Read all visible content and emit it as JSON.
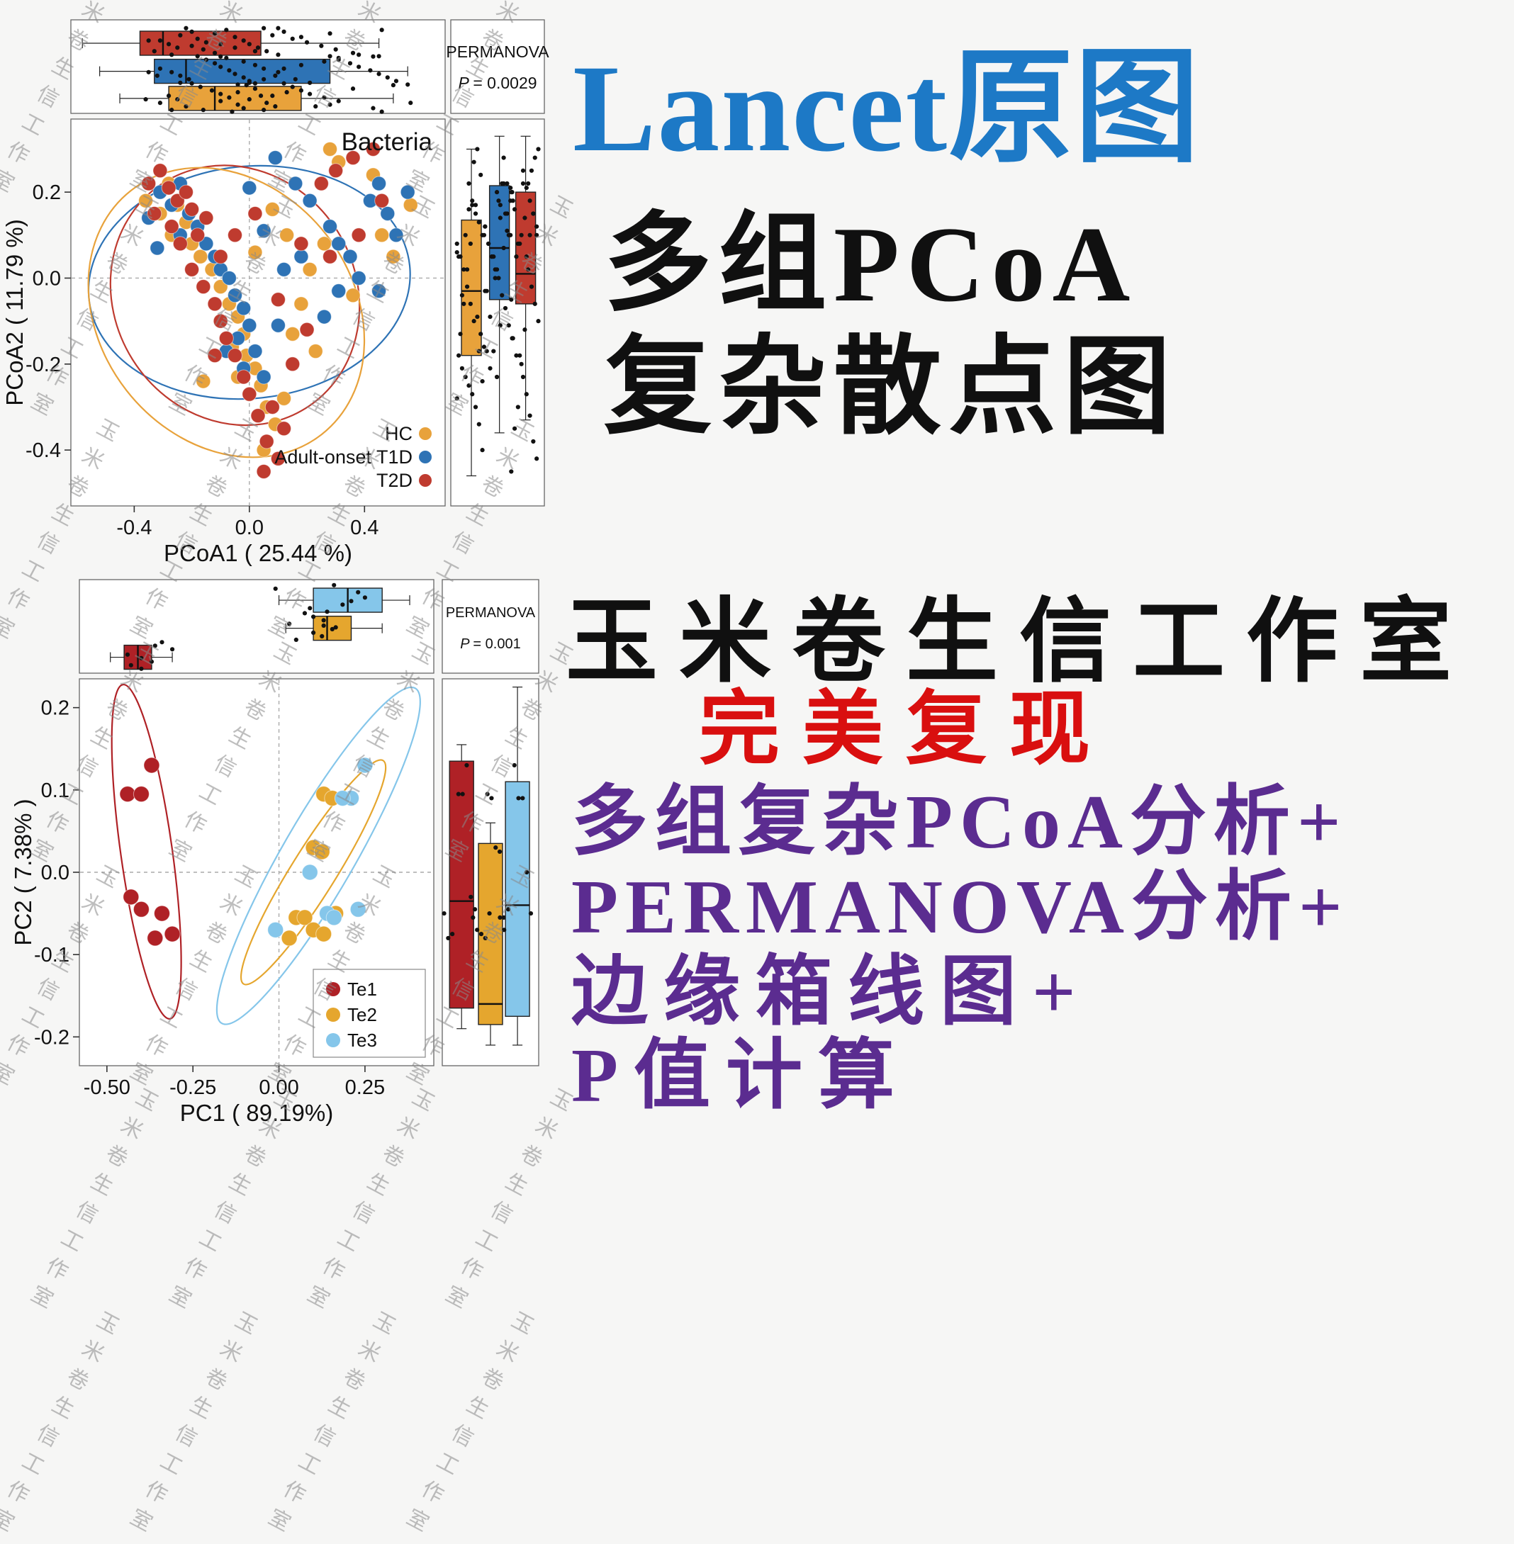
{
  "promo": {
    "lines": [
      {
        "text": "Lancet原图",
        "color": "#1d79c6"
      },
      {
        "text": "多组PCoA",
        "color": "#101010"
      },
      {
        "text": "复杂散点图",
        "color": "#101010"
      },
      {
        "text": "玉米卷生信工作室",
        "color": "#101010"
      },
      {
        "text": "完美复现",
        "color": "#d90f0f"
      },
      {
        "text": "多组复杂PCoA分析+",
        "color": "#5b2c90"
      },
      {
        "text": "PERMANOVA分析+",
        "color": "#5b2c90"
      },
      {
        "text": "边缘箱线图+",
        "color": "#5b2c90"
      },
      {
        "text": "P值计算",
        "color": "#5b2c90"
      }
    ]
  },
  "watermark": {
    "text": "玉米卷生信工作室",
    "color": "#8a8a8a"
  },
  "chart_data": [
    {
      "type": "scatter",
      "title": "Bacteria",
      "xlabel": "PCoA1 ( 25.44 %)",
      "ylabel": "PCoA2 ( 11.79 %)",
      "xlim": [
        -0.62,
        0.68
      ],
      "ylim": [
        -0.53,
        0.37
      ],
      "xticks": [
        -0.4,
        0.0,
        0.4
      ],
      "xtick_labels": [
        "-0.4",
        "0.0",
        "0.4"
      ],
      "yticks": [
        0.2,
        0.0,
        -0.2,
        -0.4
      ],
      "ytick_labels": [
        "0.2",
        "0.0",
        "-0.2",
        "-0.4"
      ],
      "permanova_label": "PERMANOVA",
      "p_label": "P = 0.0029",
      "point_r": 10,
      "perm_fs": 23,
      "series": [
        {
          "name": "HC",
          "color": "#E8A23B",
          "points": [
            [
              -0.28,
              0.22
            ],
            [
              -0.25,
              0.17
            ],
            [
              -0.31,
              0.15
            ],
            [
              -0.22,
              0.13
            ],
            [
              -0.27,
              0.1
            ],
            [
              -0.2,
              0.08
            ],
            [
              -0.17,
              0.05
            ],
            [
              -0.13,
              0.02
            ],
            [
              -0.1,
              -0.02
            ],
            [
              -0.07,
              -0.06
            ],
            [
              -0.1,
              -0.1
            ],
            [
              -0.04,
              -0.09
            ],
            [
              -0.02,
              -0.13
            ],
            [
              -0.06,
              -0.16
            ],
            [
              -0.01,
              -0.18
            ],
            [
              0.02,
              -0.21
            ],
            [
              -0.04,
              -0.23
            ],
            [
              0.04,
              -0.25
            ],
            [
              0.0,
              -0.27
            ],
            [
              0.06,
              -0.3
            ],
            [
              0.09,
              -0.34
            ],
            [
              0.05,
              -0.4
            ],
            [
              0.12,
              -0.28
            ],
            [
              0.15,
              -0.13
            ],
            [
              0.18,
              -0.06
            ],
            [
              0.21,
              0.02
            ],
            [
              0.26,
              0.08
            ],
            [
              0.31,
              0.27
            ],
            [
              0.28,
              0.3
            ],
            [
              0.43,
              0.24
            ],
            [
              0.46,
              0.1
            ],
            [
              0.5,
              0.05
            ],
            [
              0.36,
              -0.04
            ],
            [
              0.13,
              0.1
            ],
            [
              0.08,
              0.16
            ],
            [
              -0.36,
              0.18
            ],
            [
              0.56,
              0.17
            ],
            [
              0.23,
              -0.17
            ],
            [
              -0.16,
              -0.24
            ],
            [
              0.02,
              0.06
            ]
          ]
        },
        {
          "name": "Adult-onset T1D",
          "color": "#2E73B5",
          "points": [
            [
              -0.31,
              0.2
            ],
            [
              -0.27,
              0.17
            ],
            [
              -0.24,
              0.22
            ],
            [
              -0.21,
              0.15
            ],
            [
              -0.24,
              0.1
            ],
            [
              -0.18,
              0.12
            ],
            [
              -0.15,
              0.08
            ],
            [
              -0.12,
              0.05
            ],
            [
              -0.1,
              0.02
            ],
            [
              -0.07,
              0.0
            ],
            [
              -0.05,
              -0.04
            ],
            [
              -0.02,
              -0.07
            ],
            [
              0.0,
              -0.11
            ],
            [
              -0.04,
              -0.14
            ],
            [
              -0.08,
              -0.17
            ],
            [
              -0.02,
              -0.21
            ],
            [
              0.02,
              -0.17
            ],
            [
              0.05,
              -0.23
            ],
            [
              0.1,
              -0.11
            ],
            [
              0.09,
              0.28
            ],
            [
              0.16,
              0.22
            ],
            [
              0.21,
              0.18
            ],
            [
              0.28,
              0.12
            ],
            [
              0.31,
              0.08
            ],
            [
              0.35,
              0.05
            ],
            [
              0.38,
              0.0
            ],
            [
              0.42,
              0.18
            ],
            [
              0.45,
              0.22
            ],
            [
              0.48,
              0.15
            ],
            [
              0.51,
              0.1
            ],
            [
              0.55,
              0.2
            ],
            [
              0.31,
              -0.03
            ],
            [
              0.26,
              -0.09
            ],
            [
              0.18,
              0.05
            ],
            [
              0.12,
              0.02
            ],
            [
              -0.35,
              0.14
            ],
            [
              -0.32,
              0.07
            ],
            [
              0.05,
              0.11
            ],
            [
              0.0,
              0.21
            ],
            [
              0.45,
              -0.03
            ]
          ]
        },
        {
          "name": "T2D",
          "color": "#BF3B2F",
          "points": [
            [
              -0.31,
              0.25
            ],
            [
              -0.28,
              0.21
            ],
            [
              -0.25,
              0.18
            ],
            [
              -0.33,
              0.15
            ],
            [
              -0.27,
              0.12
            ],
            [
              -0.22,
              0.2
            ],
            [
              -0.2,
              0.16
            ],
            [
              -0.24,
              0.08
            ],
            [
              -0.18,
              0.1
            ],
            [
              -0.15,
              0.14
            ],
            [
              -0.2,
              0.02
            ],
            [
              -0.16,
              -0.02
            ],
            [
              -0.12,
              -0.06
            ],
            [
              -0.1,
              -0.1
            ],
            [
              -0.08,
              -0.14
            ],
            [
              -0.12,
              -0.18
            ],
            [
              -0.05,
              -0.18
            ],
            [
              -0.02,
              -0.23
            ],
            [
              0.0,
              -0.27
            ],
            [
              0.03,
              -0.32
            ],
            [
              0.06,
              -0.38
            ],
            [
              0.1,
              -0.42
            ],
            [
              0.05,
              -0.45
            ],
            [
              0.12,
              -0.35
            ],
            [
              0.08,
              -0.3
            ],
            [
              0.15,
              -0.2
            ],
            [
              0.2,
              -0.12
            ],
            [
              0.25,
              0.22
            ],
            [
              0.3,
              0.25
            ],
            [
              0.36,
              0.28
            ],
            [
              0.43,
              0.3
            ],
            [
              0.46,
              0.18
            ],
            [
              0.28,
              0.05
            ],
            [
              0.18,
              0.08
            ],
            [
              -0.35,
              0.22
            ],
            [
              -0.1,
              0.05
            ],
            [
              -0.05,
              0.1
            ],
            [
              0.02,
              0.15
            ],
            [
              0.38,
              0.1
            ],
            [
              0.1,
              -0.05
            ]
          ]
        }
      ],
      "ellipses": [
        {
          "color": "#2E73B5",
          "cx": 0.0,
          "cy": -0.01,
          "rx": 0.56,
          "ry": 0.27,
          "angle": -6
        },
        {
          "color": "#BF3B2F",
          "cx": -0.05,
          "cy": -0.04,
          "rx": 0.42,
          "ry": 0.31,
          "angle": -32
        },
        {
          "color": "#E8A23B",
          "cx": -0.08,
          "cy": -0.08,
          "rx": 0.44,
          "ry": 0.36,
          "angle": -38
        }
      ],
      "top_box": [
        {
          "series": 2,
          "color": "#BF3B2F",
          "min": -0.58,
          "q1": -0.38,
          "med": -0.3,
          "q3": 0.04,
          "max": 0.45
        },
        {
          "series": 1,
          "color": "#2E73B5",
          "min": -0.52,
          "q1": -0.33,
          "med": -0.22,
          "q3": 0.28,
          "max": 0.55
        },
        {
          "series": 0,
          "color": "#E8A23B",
          "min": -0.45,
          "q1": -0.28,
          "med": -0.12,
          "q3": 0.18,
          "max": 0.5
        }
      ],
      "right_box": [
        {
          "series": 0,
          "color": "#E8A23B",
          "min": -0.46,
          "q1": -0.18,
          "med": -0.03,
          "q3": 0.135,
          "max": 0.3
        },
        {
          "series": 1,
          "color": "#2E73B5",
          "min": -0.36,
          "q1": -0.05,
          "med": 0.07,
          "q3": 0.215,
          "max": 0.33
        },
        {
          "series": 2,
          "color": "#BF3B2F",
          "min": -0.33,
          "q1": -0.06,
          "med": 0.01,
          "q3": 0.2,
          "max": 0.33
        }
      ],
      "legend": [
        "HC",
        "Adult-onset T1D",
        "T2D"
      ]
    },
    {
      "type": "scatter",
      "title": "",
      "xlabel": "PC1 ( 89.19%)",
      "ylabel": "PC2 ( 7.38% )",
      "xlim": [
        -0.58,
        0.45
      ],
      "ylim": [
        -0.235,
        0.235
      ],
      "xticks": [
        -0.5,
        -0.25,
        0.0,
        0.25
      ],
      "xtick_labels": [
        "-0.50",
        "-0.25",
        "0.00",
        "0.25"
      ],
      "yticks": [
        0.2,
        0.1,
        0.0,
        -0.1,
        -0.2
      ],
      "ytick_labels": [
        "0.2",
        "0.1",
        "0.0",
        "-0.1",
        "-0.2"
      ],
      "permanova_label": "PERMANOVA",
      "p_label": "P = 0.001",
      "point_r": 11,
      "perm_fs": 20,
      "series": [
        {
          "name": "Te1",
          "color": "#AF2126",
          "points": [
            [
              -0.44,
              0.095
            ],
            [
              -0.4,
              0.095
            ],
            [
              -0.37,
              0.13
            ],
            [
              -0.43,
              -0.03
            ],
            [
              -0.4,
              -0.045
            ],
            [
              -0.34,
              -0.05
            ],
            [
              -0.36,
              -0.08
            ],
            [
              -0.31,
              -0.075
            ]
          ]
        },
        {
          "name": "Te2",
          "color": "#E5A62E",
          "points": [
            [
              0.13,
              0.095
            ],
            [
              0.155,
              0.09
            ],
            [
              0.1,
              0.03
            ],
            [
              0.125,
              0.025
            ],
            [
              0.05,
              -0.055
            ],
            [
              0.075,
              -0.055
            ],
            [
              0.1,
              -0.07
            ],
            [
              0.13,
              -0.075
            ],
            [
              0.03,
              -0.08
            ],
            [
              0.165,
              -0.05
            ]
          ]
        },
        {
          "name": "Te3",
          "color": "#85C6EA",
          "points": [
            [
              0.25,
              0.13
            ],
            [
              0.21,
              0.09
            ],
            [
              0.185,
              0.09
            ],
            [
              0.09,
              0.0
            ],
            [
              0.14,
              -0.05
            ],
            [
              0.16,
              -0.055
            ],
            [
              -0.01,
              -0.07
            ],
            [
              0.23,
              -0.045
            ]
          ]
        }
      ],
      "ellipses": [
        {
          "color": "#AF2126",
          "cx": -0.385,
          "cy": 0.025,
          "rx": 0.075,
          "ry": 0.205,
          "angle": -8
        },
        {
          "color": "#E5A62E",
          "cx": 0.1,
          "cy": 0.0,
          "rx": 0.065,
          "ry": 0.16,
          "angle": 32
        },
        {
          "color": "#85C6EA",
          "cx": 0.115,
          "cy": 0.02,
          "rx": 0.105,
          "ry": 0.235,
          "angle": 30
        }
      ],
      "top_box": [
        {
          "series": 2,
          "color": "#85C6EA",
          "min": 0.0,
          "q1": 0.1,
          "med": 0.2,
          "q3": 0.3,
          "max": 0.38
        },
        {
          "series": 1,
          "color": "#E5A62E",
          "min": 0.02,
          "q1": 0.1,
          "med": 0.14,
          "q3": 0.21,
          "max": 0.3
        },
        {
          "series": 0,
          "color": "#AF2126",
          "min": -0.49,
          "q1": -0.45,
          "med": -0.41,
          "q3": -0.37,
          "max": -0.31
        }
      ],
      "right_box": [
        {
          "series": 0,
          "color": "#AF2126",
          "min": -0.19,
          "q1": -0.165,
          "med": -0.035,
          "q3": 0.135,
          "max": 0.155
        },
        {
          "series": 1,
          "color": "#E5A62E",
          "min": -0.21,
          "q1": -0.185,
          "med": -0.16,
          "q3": 0.035,
          "max": 0.06
        },
        {
          "series": 2,
          "color": "#85C6EA",
          "min": -0.21,
          "q1": -0.175,
          "med": -0.04,
          "q3": 0.11,
          "max": 0.225
        }
      ],
      "legend": [
        "Te1",
        "Te2",
        "Te3"
      ]
    }
  ]
}
